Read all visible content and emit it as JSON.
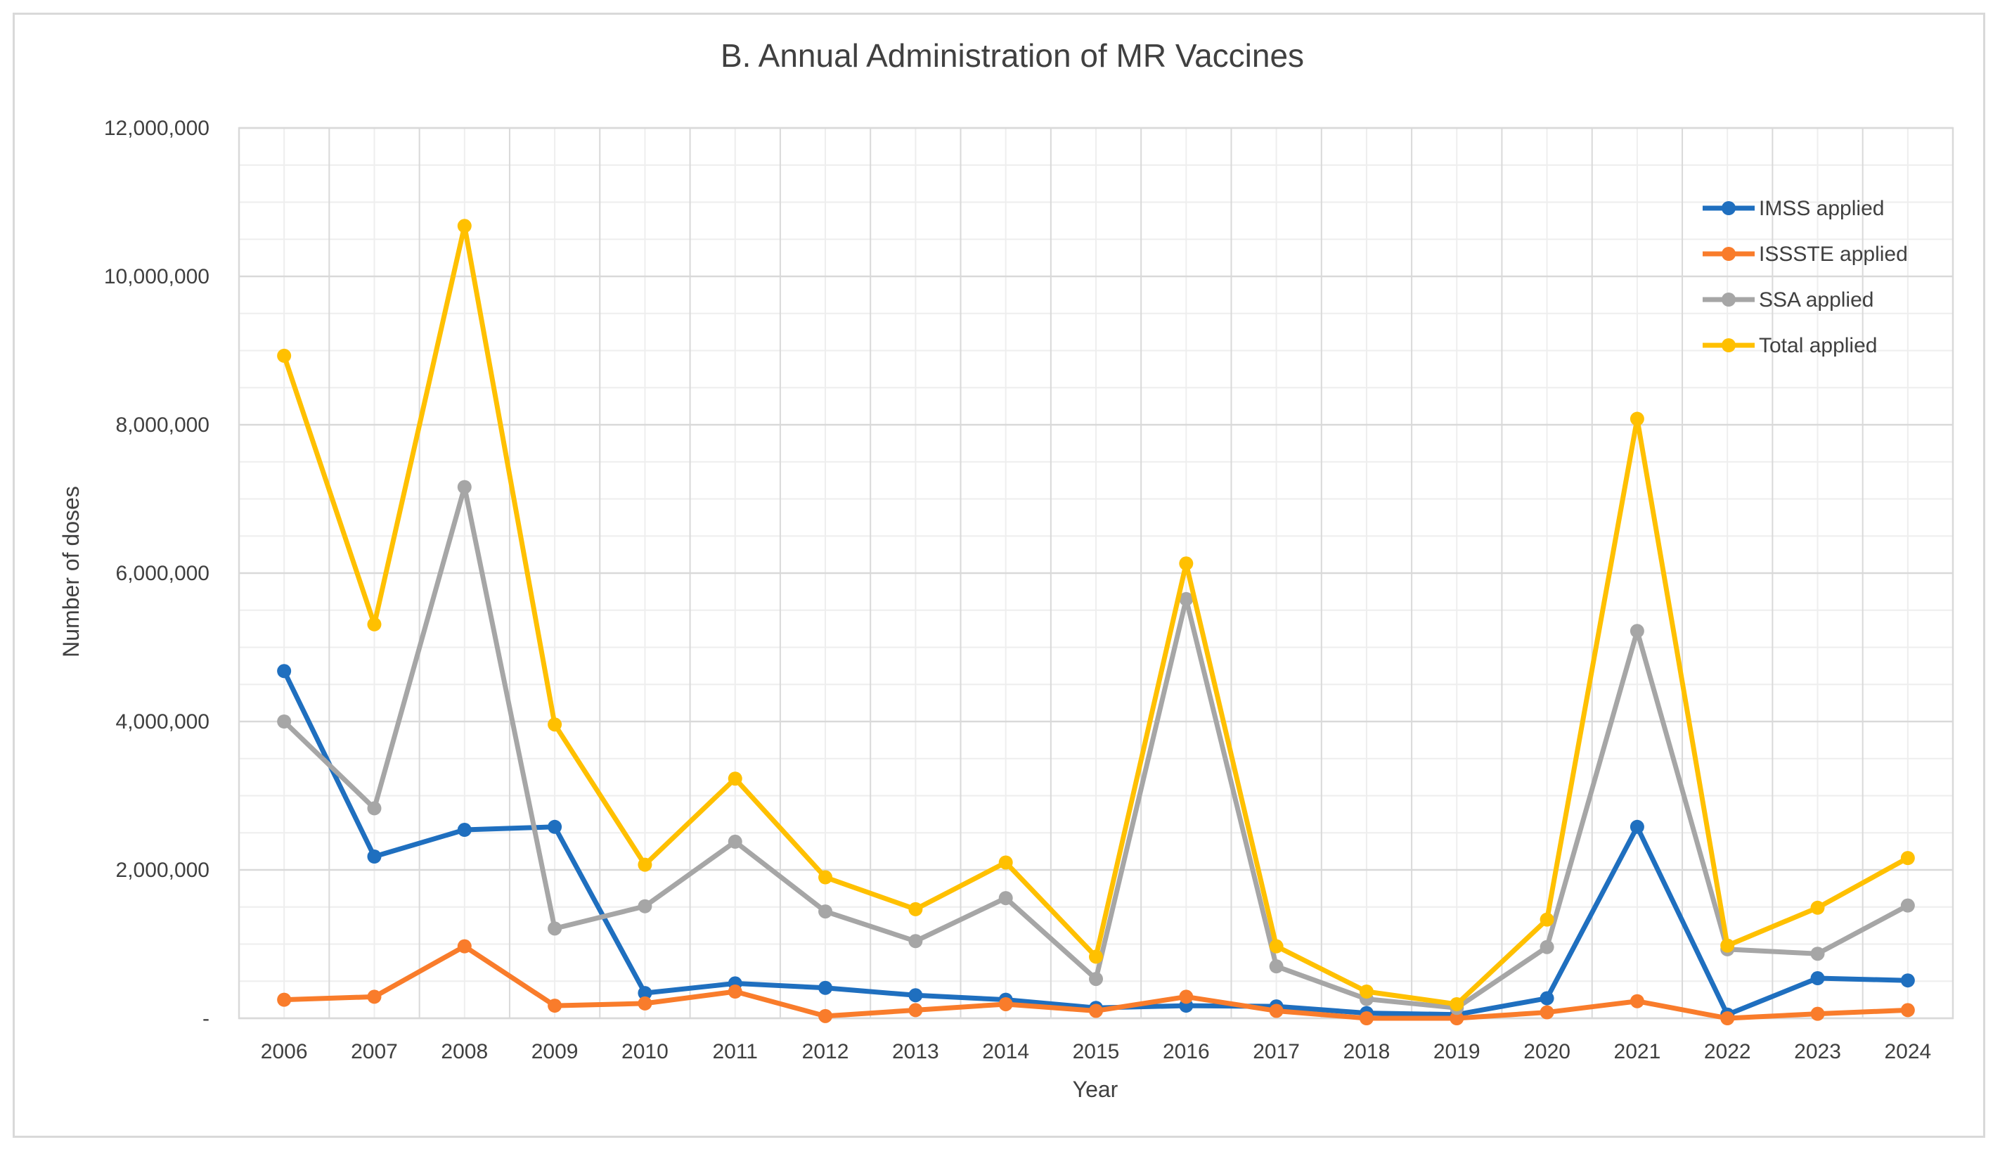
{
  "chart_data": {
    "type": "line",
    "title": "B. Annual Administration of MR Vaccines",
    "xlabel": "Year",
    "ylabel": "Number of doses",
    "ylim": [
      0,
      12000000
    ],
    "y_ticks": [
      0,
      2000000,
      4000000,
      6000000,
      8000000,
      10000000,
      12000000
    ],
    "y_tick_labels": [
      "-",
      "2,000,000",
      "4,000,000",
      "6,000,000",
      "8,000,000",
      "10,000,000",
      "12,000,000"
    ],
    "grid": true,
    "legend_position": "top-right",
    "categories": [
      "2006",
      "2007",
      "2008",
      "2009",
      "2010",
      "2011",
      "2012",
      "2013",
      "2014",
      "2015",
      "2016",
      "2017",
      "2018",
      "2019",
      "2020",
      "2021",
      "2022",
      "2023",
      "2024"
    ],
    "series": [
      {
        "name": "IMSS applied",
        "color": "#1f6fbf",
        "values": [
          4680000,
          2180000,
          2540000,
          2580000,
          340000,
          470000,
          410000,
          310000,
          250000,
          140000,
          170000,
          160000,
          70000,
          50000,
          270000,
          2580000,
          50000,
          540000,
          510000
        ]
      },
      {
        "name": "ISSSTE applied",
        "color": "#f97c2b",
        "values": [
          250000,
          290000,
          970000,
          170000,
          200000,
          360000,
          30000,
          110000,
          190000,
          100000,
          290000,
          100000,
          0,
          0,
          80000,
          230000,
          0,
          60000,
          110000
        ]
      },
      {
        "name": "SSA applied",
        "color": "#a6a6a6",
        "values": [
          4000000,
          2830000,
          7160000,
          1210000,
          1510000,
          2380000,
          1440000,
          1040000,
          1620000,
          530000,
          5650000,
          700000,
          260000,
          140000,
          960000,
          5220000,
          930000,
          870000,
          1520000
        ]
      },
      {
        "name": "Total applied",
        "color": "#ffc000",
        "values": [
          8930000,
          5310000,
          10680000,
          3960000,
          2070000,
          3230000,
          1900000,
          1470000,
          2100000,
          830000,
          6130000,
          970000,
          360000,
          190000,
          1330000,
          8080000,
          980000,
          1490000,
          2160000
        ]
      }
    ]
  }
}
